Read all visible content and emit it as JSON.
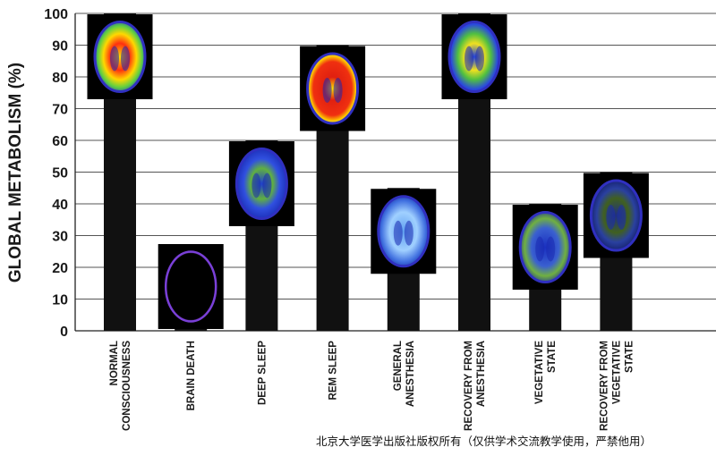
{
  "chart_data": {
    "type": "bar",
    "ylabel": "GLOBAL METABOLISM (%)",
    "ylim": [
      0,
      100
    ],
    "yticks": [
      0,
      10,
      20,
      30,
      40,
      50,
      60,
      70,
      80,
      90,
      100
    ],
    "grid": true,
    "categories": [
      [
        "NORMAL",
        "CONSCIOUSNESS"
      ],
      [
        "BRAIN DEATH"
      ],
      [
        "DEEP SLEEP"
      ],
      [
        "REM SLEEP"
      ],
      [
        "GENERAL",
        "ANESTHESIA"
      ],
      [
        "RECOVERY FROM",
        "ANESTHESIA"
      ],
      [
        "VEGETATIVE",
        "STATE"
      ],
      [
        "RECOVERY FROM",
        "VEGETATIVE",
        "STATE"
      ]
    ],
    "values": [
      100,
      26,
      60,
      90,
      45,
      100,
      40,
      50
    ],
    "bar_color": "#111111",
    "brain_scan_colormaps": [
      "green-yellow-red",
      "purple-outline",
      "blue-green",
      "red-yellow-green",
      "light-blue",
      "blue-green-yellow",
      "blue-green",
      "dark-blue-green"
    ]
  },
  "watermark": "北京大学医学出版社版权所有（仅供学术交流教学使用，严禁他用）"
}
